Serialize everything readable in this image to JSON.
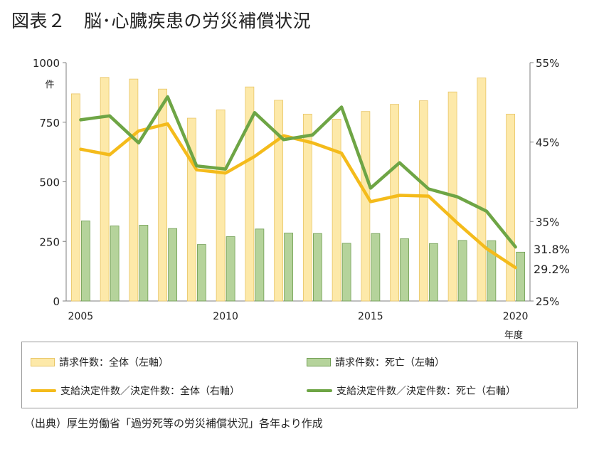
{
  "title": "図表２　脳･心臓疾患の労災補償状況",
  "source": "（出典）厚生労働省「過労死等の労災補償状況」各年より作成",
  "chart_data": {
    "type": "bar",
    "x": [
      2005,
      2006,
      2007,
      2008,
      2009,
      2010,
      2011,
      2012,
      2013,
      2014,
      2015,
      2016,
      2017,
      2018,
      2019,
      2020
    ],
    "x_tick_labels": [
      "2005",
      "2010",
      "2015",
      "2020"
    ],
    "y_left": {
      "ylim": [
        0,
        1000
      ],
      "ticks": [
        "0",
        "250",
        "500",
        "750",
        "1000"
      ],
      "unit": "件"
    },
    "y_right": {
      "ylim": [
        25,
        55
      ],
      "ticks": [
        "25%",
        "35%",
        "45%",
        "55%"
      ]
    },
    "xlabel": "年度",
    "series": [
      {
        "name": "請求件数：全体（左軸）",
        "type": "bar",
        "axis": "left",
        "color": "#fde9a9",
        "values": [
          869,
          938,
          931,
          889,
          767,
          802,
          898,
          842,
          784,
          763,
          795,
          825,
          840,
          877,
          936,
          784
        ]
      },
      {
        "name": "請求件数：死亡（左軸）",
        "type": "bar",
        "axis": "left",
        "color": "#b5d39b",
        "values": [
          336,
          315,
          318,
          304,
          237,
          270,
          302,
          285,
          283,
          242,
          283,
          261,
          241,
          254,
          253,
          205
        ]
      },
      {
        "name": "支給決定件数／決定件数：全体（右軸）",
        "type": "line",
        "axis": "right",
        "color": "#f4bb1b",
        "values": [
          44.1,
          43.4,
          46.4,
          47.3,
          41.5,
          41.1,
          43.2,
          45.8,
          44.9,
          43.6,
          37.5,
          38.3,
          38.2,
          34.8,
          31.6,
          29.2
        ]
      },
      {
        "name": "支給決定件数／決定件数：死亡（右軸）",
        "type": "line",
        "axis": "right",
        "color": "#6ea545",
        "values": [
          47.8,
          48.3,
          44.9,
          50.7,
          42.0,
          41.6,
          48.7,
          45.3,
          45.9,
          49.4,
          39.2,
          42.4,
          39.1,
          38.1,
          36.3,
          31.8
        ]
      }
    ],
    "annotations": [
      "31.8%",
      "29.2%"
    ]
  }
}
